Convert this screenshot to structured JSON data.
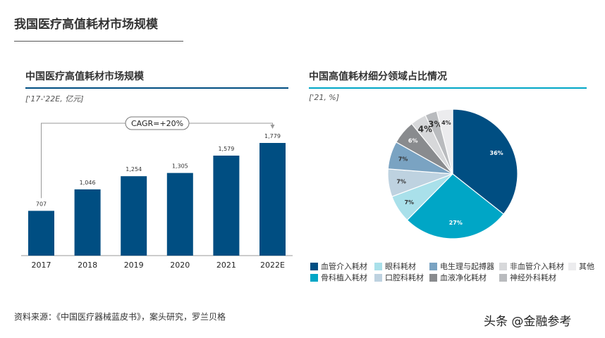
{
  "title": "我国医疗高值耗材市场规模",
  "source": "资料来源：《中国医疗器械蓝皮书》，案头研究，罗兰贝格",
  "watermark": "头条 @金融参考",
  "chart_data": [
    {
      "type": "bar",
      "title": "中国医疗高值耗材市场规模",
      "unit": "['17-'22E, 亿元]",
      "categories": [
        "2017",
        "2018",
        "2019",
        "2020",
        "2021",
        "2022E"
      ],
      "values": [
        707,
        1046,
        1254,
        1305,
        1579,
        1779
      ],
      "labels": [
        "707",
        "1,046",
        "1,254",
        "1,305",
        "1,579",
        "1,779"
      ],
      "annotation": "CAGR=+20%",
      "color": "#004e82"
    },
    {
      "type": "pie",
      "title": "中国高值耗材细分领域占比情况",
      "unit": "['21, %]",
      "slices": [
        {
          "name": "血管介入耗材",
          "value": 36,
          "color": "#004e82",
          "label_color": "#ffffff"
        },
        {
          "name": "骨科植入耗材",
          "value": 27,
          "color": "#00a6c6",
          "label_color": "#ffffff"
        },
        {
          "name": "眼科耗材",
          "value": 7,
          "color": "#a9e0ea",
          "label_color": "#333333"
        },
        {
          "name": "口腔科耗材",
          "value": 7,
          "color": "#bed2e0",
          "label_color": "#333333"
        },
        {
          "name": "电生理与起搏器",
          "value": 7,
          "color": "#7aa3c2",
          "label_color": "#333333"
        },
        {
          "name": "血液净化耗材",
          "value": 6,
          "color": "#898b8e",
          "label_color": "#ffffff"
        },
        {
          "name": "非血管介入耗材",
          "value": 4,
          "color": "#d7d8da",
          "label_color": "#333333"
        },
        {
          "name": "神经外科耗材",
          "value": 3,
          "color": "#b9bbbe",
          "label_color": "#333333"
        },
        {
          "name": "其他",
          "value": 4,
          "color": "#ececee",
          "label_color": "#333333"
        }
      ],
      "legend_order": [
        "血管介入耗材",
        "眼科耗材",
        "电生理与起搏器",
        "非血管介入耗材",
        "其他",
        "骨科植入耗材",
        "口腔科耗材",
        "血液净化耗材",
        "神经外科耗材"
      ],
      "legend_position": "bottom"
    }
  ]
}
